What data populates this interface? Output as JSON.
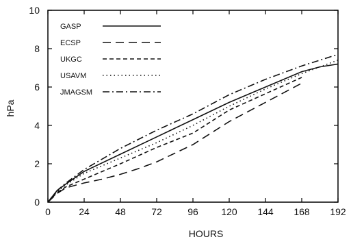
{
  "chart_data": {
    "type": "line",
    "xlabel": "HOURS",
    "ylabel": "hPa",
    "xlim": [
      0,
      192
    ],
    "ylim": [
      0,
      10
    ],
    "x_ticks": [
      "0",
      "24",
      "48",
      "72",
      "96",
      "120",
      "144",
      "168",
      "192"
    ],
    "y_ticks": [
      "0",
      "2",
      "4",
      "6",
      "8",
      "10"
    ],
    "grid": false,
    "legend_position": "top-left",
    "colors": {
      "axis": "#000000",
      "series": "#111111",
      "background": "#ffffff"
    },
    "series": [
      {
        "name": "GASP",
        "dash": "solid",
        "x": [
          0,
          6,
          12,
          24,
          48,
          72,
          96,
          120,
          144,
          168,
          180,
          192
        ],
        "y": [
          0,
          0.6,
          0.95,
          1.6,
          2.5,
          3.4,
          4.3,
          5.2,
          6.0,
          6.8,
          7.05,
          7.2
        ]
      },
      {
        "name": "ECSP",
        "dash": "long-dash",
        "x": [
          0,
          6,
          12,
          24,
          36,
          48,
          60,
          72,
          96,
          120,
          144,
          168
        ],
        "y": [
          0,
          0.45,
          0.75,
          1.0,
          1.2,
          1.45,
          1.75,
          2.1,
          3.0,
          4.2,
          5.2,
          6.2
        ]
      },
      {
        "name": "UKGC",
        "dash": "dash",
        "x": [
          0,
          6,
          12,
          24,
          48,
          72,
          96,
          120,
          144,
          168
        ],
        "y": [
          0,
          0.5,
          0.8,
          1.2,
          2.0,
          2.85,
          3.6,
          4.8,
          5.65,
          6.5
        ]
      },
      {
        "name": "USAVM",
        "dash": "dotted",
        "x": [
          0,
          6,
          12,
          24,
          48,
          72,
          96,
          120,
          144,
          168,
          192
        ],
        "y": [
          0,
          0.55,
          0.9,
          1.5,
          2.3,
          3.1,
          4.0,
          5.0,
          5.9,
          6.7,
          7.4
        ]
      },
      {
        "name": "JMAGSM",
        "dash": "dash-dot",
        "x": [
          0,
          6,
          12,
          24,
          48,
          72,
          96,
          120,
          144,
          168,
          192
        ],
        "y": [
          0,
          0.6,
          1.0,
          1.7,
          2.8,
          3.75,
          4.6,
          5.6,
          6.4,
          7.1,
          7.7
        ]
      }
    ]
  }
}
